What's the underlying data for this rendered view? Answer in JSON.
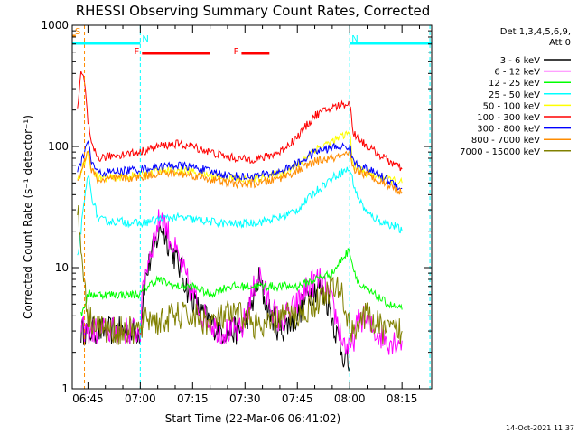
{
  "chart_data": {
    "type": "line",
    "title": "RHESSI Observing Summary Count Rates, Corrected",
    "ylabel": "Corrected Count Rate (s⁻¹ detector⁻¹)",
    "xlabel": "Start Time (22-Mar-06 06:41:02)",
    "y_scale": "log",
    "ylim": [
      1,
      1000
    ],
    "y_ticks": [
      1,
      10,
      100,
      1000
    ],
    "y_tick_labels": [
      "1",
      "10",
      "100",
      "1000"
    ],
    "xlim_minutes": [
      -4.5,
      98.5
    ],
    "x_ticks": [
      {
        "t": 0,
        "label": "06:45"
      },
      {
        "t": 15,
        "label": "07:00"
      },
      {
        "t": 30,
        "label": "07:15"
      },
      {
        "t": 45,
        "label": "07:30"
      },
      {
        "t": 60,
        "label": "07:45"
      },
      {
        "t": 75,
        "label": "08:00"
      },
      {
        "t": 90,
        "label": "08:15"
      }
    ],
    "legend_placement": "right",
    "legend_header": [
      "Det 1,3,4,5,6,9,",
      "Att 0"
    ],
    "series": [
      {
        "name": "3 - 6 keV",
        "color": "#000000",
        "points": [
          [
            -2,
            3
          ],
          [
            0,
            3
          ],
          [
            15,
            3
          ],
          [
            16,
            7
          ],
          [
            18,
            12
          ],
          [
            21,
            22
          ],
          [
            24,
            14
          ],
          [
            27,
            9
          ],
          [
            29,
            6
          ],
          [
            33,
            4
          ],
          [
            38,
            3
          ],
          [
            44,
            3
          ],
          [
            47,
            5
          ],
          [
            49,
            8
          ],
          [
            51,
            5
          ],
          [
            55,
            3
          ],
          [
            60,
            4
          ],
          [
            63,
            6
          ],
          [
            66,
            7
          ],
          [
            69,
            5
          ],
          [
            71,
            3
          ],
          [
            73,
            2
          ],
          [
            75,
            1.5
          ]
        ]
      },
      {
        "name": "6 - 12 keV",
        "color": "#ff00ff",
        "points": [
          [
            -2,
            3
          ],
          [
            0,
            3
          ],
          [
            15,
            3
          ],
          [
            16,
            8
          ],
          [
            18,
            14
          ],
          [
            21,
            28
          ],
          [
            24,
            16
          ],
          [
            27,
            10
          ],
          [
            29,
            7
          ],
          [
            33,
            4
          ],
          [
            38,
            3
          ],
          [
            44,
            3
          ],
          [
            47,
            6
          ],
          [
            49,
            9
          ],
          [
            51,
            6
          ],
          [
            55,
            3.5
          ],
          [
            60,
            5
          ],
          [
            63,
            7
          ],
          [
            66,
            8
          ],
          [
            69,
            6
          ],
          [
            71,
            4
          ],
          [
            73,
            2.5
          ],
          [
            75,
            2
          ],
          [
            78,
            4
          ],
          [
            82,
            3
          ],
          [
            86,
            2.5
          ],
          [
            90,
            2.5
          ]
        ]
      },
      {
        "name": "12 - 25 keV",
        "color": "#00ff00",
        "points": [
          [
            -2,
            4
          ],
          [
            0,
            6
          ],
          [
            5,
            6
          ],
          [
            10,
            6
          ],
          [
            15,
            6
          ],
          [
            17,
            7
          ],
          [
            20,
            8
          ],
          [
            25,
            7
          ],
          [
            30,
            7
          ],
          [
            35,
            6
          ],
          [
            40,
            7
          ],
          [
            45,
            7
          ],
          [
            50,
            7
          ],
          [
            55,
            7
          ],
          [
            60,
            7
          ],
          [
            65,
            8
          ],
          [
            70,
            9
          ],
          [
            73,
            12
          ],
          [
            75,
            14
          ],
          [
            76,
            10
          ],
          [
            78,
            7
          ],
          [
            82,
            6
          ],
          [
            86,
            5
          ],
          [
            90,
            4.5
          ]
        ]
      },
      {
        "name": "25 - 50 keV",
        "color": "#00ffff",
        "points": [
          [
            -3,
            12
          ],
          [
            0,
            60
          ],
          [
            1,
            40
          ],
          [
            3,
            25
          ],
          [
            6,
            24
          ],
          [
            10,
            24
          ],
          [
            15,
            23
          ],
          [
            20,
            25
          ],
          [
            25,
            26
          ],
          [
            30,
            25
          ],
          [
            35,
            24
          ],
          [
            40,
            23
          ],
          [
            45,
            23
          ],
          [
            50,
            24
          ],
          [
            55,
            26
          ],
          [
            60,
            30
          ],
          [
            65,
            42
          ],
          [
            70,
            55
          ],
          [
            73,
            62
          ],
          [
            75,
            65
          ],
          [
            77,
            40
          ],
          [
            80,
            28
          ],
          [
            84,
            24
          ],
          [
            88,
            22
          ],
          [
            90,
            20
          ]
        ]
      },
      {
        "name": "50 - 100 keV",
        "color": "#ffff00",
        "points": [
          [
            -3,
            50
          ],
          [
            0,
            90
          ],
          [
            1,
            65
          ],
          [
            3,
            55
          ],
          [
            8,
            55
          ],
          [
            15,
            58
          ],
          [
            20,
            62
          ],
          [
            25,
            64
          ],
          [
            30,
            62
          ],
          [
            35,
            58
          ],
          [
            40,
            55
          ],
          [
            45,
            53
          ],
          [
            50,
            55
          ],
          [
            55,
            60
          ],
          [
            60,
            70
          ],
          [
            65,
            95
          ],
          [
            70,
            110
          ],
          [
            75,
            130
          ],
          [
            76,
            70
          ],
          [
            80,
            60
          ],
          [
            85,
            55
          ],
          [
            90,
            50
          ]
        ]
      },
      {
        "name": "100 - 300 keV",
        "color": "#ff0000",
        "points": [
          [
            -3,
            200
          ],
          [
            -2,
            400
          ],
          [
            -1,
            350
          ],
          [
            0,
            160
          ],
          [
            1,
            100
          ],
          [
            3,
            80
          ],
          [
            8,
            85
          ],
          [
            15,
            90
          ],
          [
            20,
            100
          ],
          [
            25,
            105
          ],
          [
            30,
            100
          ],
          [
            35,
            90
          ],
          [
            40,
            82
          ],
          [
            45,
            78
          ],
          [
            50,
            80
          ],
          [
            55,
            90
          ],
          [
            60,
            120
          ],
          [
            65,
            180
          ],
          [
            70,
            210
          ],
          [
            75,
            230
          ],
          [
            76,
            130
          ],
          [
            80,
            100
          ],
          [
            85,
            80
          ],
          [
            90,
            65
          ]
        ]
      },
      {
        "name": "300 - 800 keV",
        "color": "#0000ff",
        "points": [
          [
            -3,
            60
          ],
          [
            0,
            110
          ],
          [
            1,
            75
          ],
          [
            3,
            60
          ],
          [
            8,
            62
          ],
          [
            15,
            65
          ],
          [
            20,
            68
          ],
          [
            25,
            70
          ],
          [
            30,
            68
          ],
          [
            35,
            62
          ],
          [
            40,
            58
          ],
          [
            45,
            56
          ],
          [
            50,
            58
          ],
          [
            55,
            62
          ],
          [
            60,
            72
          ],
          [
            65,
            90
          ],
          [
            70,
            98
          ],
          [
            75,
            100
          ],
          [
            76,
            75
          ],
          [
            80,
            65
          ],
          [
            85,
            55
          ],
          [
            90,
            45
          ]
        ]
      },
      {
        "name": "800 - 7000 keV",
        "color": "#ff8c00",
        "points": [
          [
            -3,
            50
          ],
          [
            0,
            95
          ],
          [
            1,
            65
          ],
          [
            3,
            52
          ],
          [
            8,
            54
          ],
          [
            15,
            56
          ],
          [
            20,
            60
          ],
          [
            25,
            60
          ],
          [
            30,
            58
          ],
          [
            35,
            54
          ],
          [
            40,
            50
          ],
          [
            45,
            49
          ],
          [
            50,
            50
          ],
          [
            55,
            55
          ],
          [
            60,
            63
          ],
          [
            65,
            75
          ],
          [
            70,
            80
          ],
          [
            75,
            85
          ],
          [
            76,
            65
          ],
          [
            80,
            58
          ],
          [
            85,
            50
          ],
          [
            90,
            42
          ]
        ]
      },
      {
        "name": "7000 - 15000 keV",
        "color": "#808000",
        "points": [
          [
            -3,
            30
          ],
          [
            0,
            4
          ],
          [
            5,
            3
          ],
          [
            10,
            3
          ],
          [
            15,
            3
          ],
          [
            17,
            4
          ],
          [
            20,
            3.5
          ],
          [
            25,
            4
          ],
          [
            30,
            4
          ],
          [
            35,
            3.5
          ],
          [
            40,
            4
          ],
          [
            45,
            4
          ],
          [
            50,
            3
          ],
          [
            55,
            4
          ],
          [
            60,
            4
          ],
          [
            65,
            5
          ],
          [
            70,
            7
          ],
          [
            73,
            6
          ],
          [
            75,
            3
          ],
          [
            80,
            4
          ],
          [
            85,
            3
          ],
          [
            90,
            3
          ]
        ]
      }
    ],
    "flag_bars": [
      {
        "label": "S",
        "color": "#ff8c00",
        "t_start": -4.5,
        "t_end": -3.5
      },
      {
        "label": "N",
        "color": "#00ffff",
        "t_start": -4.5,
        "t_end": 15
      },
      {
        "label": "N",
        "color": "#00ffff",
        "t_start": 75,
        "t_end": 98.5
      },
      {
        "label": "F",
        "color": "#ff0000",
        "t_start": 15.5,
        "t_end": 35
      },
      {
        "label": "F",
        "color": "#ff0000",
        "t_start": 44,
        "t_end": 52
      }
    ],
    "vertical_lines": [
      {
        "t": -1,
        "color": "#ff8c00"
      },
      {
        "t": 15,
        "color": "#00ffff"
      },
      {
        "t": 75,
        "color": "#00ffff"
      },
      {
        "t": 98,
        "color": "#00ffff"
      }
    ],
    "footer": "14-Oct-2021 11:37"
  }
}
